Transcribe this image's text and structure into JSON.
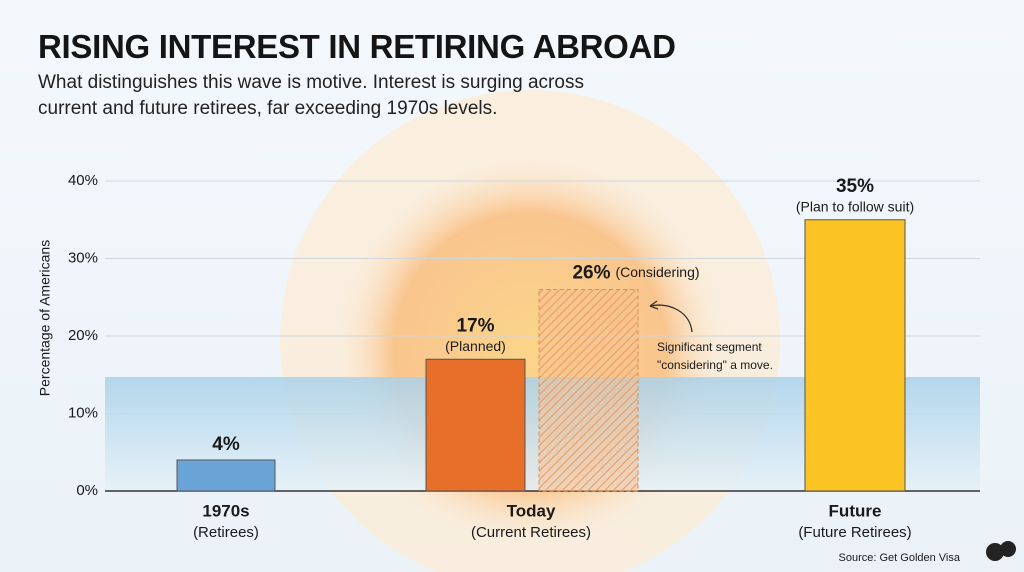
{
  "chart_data": {
    "type": "bar",
    "title": "RISING INTEREST IN RETIRING ABROAD",
    "subtitle": "What distinguishes this wave is motive. Interest is surging across current and future retirees, far exceeding 1970s levels.",
    "y_label": "Percentage of Americans",
    "categories": [
      "1970s",
      "Today",
      "Future"
    ],
    "category_notes": [
      "(Retirees)",
      "(Current Retirees)",
      "(Future Retirees)"
    ],
    "bars": [
      {
        "category": 0,
        "value": 4,
        "value_label": "4%",
        "color": "#6aa3d6",
        "hatched": false
      },
      {
        "category": 1,
        "value": 17,
        "value_label": "17%",
        "note": "(Planned)",
        "color": "#e86f2a",
        "hatched": false
      },
      {
        "category": 1,
        "value": 26,
        "value_label": "26%",
        "note": "(Considering)",
        "color": "#f6c08f",
        "hatched": true
      },
      {
        "category": 2,
        "value": 35,
        "value_label": "35%",
        "note": "(Plan to follow suit)",
        "color": "#fbc323",
        "hatched": false
      }
    ],
    "annotation": [
      "Significant segment",
      "\"considering\" a move."
    ],
    "source": "Source: Get Golden Visa",
    "ylim": [
      0,
      40
    ],
    "yticks": [
      {
        "value": 0,
        "label": "0%"
      },
      {
        "value": 10,
        "label": "10%"
      },
      {
        "value": 20,
        "label": "20%"
      },
      {
        "value": 30,
        "label": "30%"
      },
      {
        "value": 40,
        "label": "40%"
      }
    ],
    "grid": true
  }
}
